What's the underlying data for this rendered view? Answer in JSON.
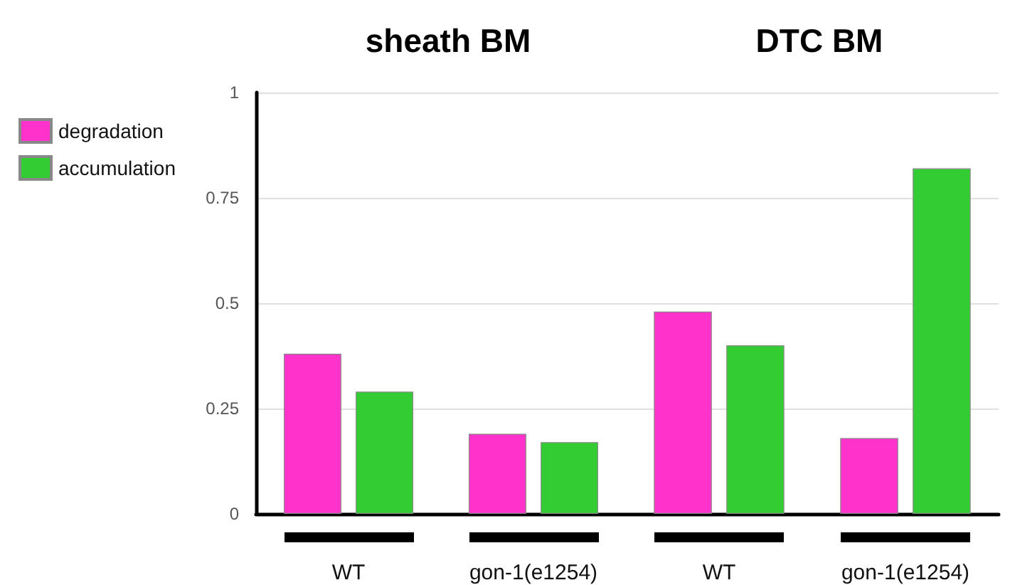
{
  "chart_data": [
    {
      "type": "bar",
      "title": "sheath BM",
      "categories": [
        "WT",
        "gon-1(e1254)"
      ],
      "series": [
        {
          "name": "degradation",
          "color": "#ff33cc",
          "values": [
            0.38,
            0.19
          ]
        },
        {
          "name": "accumulation",
          "color": "#33cc33",
          "values": [
            0.29,
            0.17
          ]
        }
      ],
      "ylim": [
        0,
        1
      ],
      "yticks": [
        0,
        0.25,
        0.5,
        0.75,
        1
      ],
      "grid": "y",
      "legend": "left"
    },
    {
      "type": "bar",
      "title": "DTC BM",
      "categories": [
        "WT",
        "gon-1(e1254)"
      ],
      "series": [
        {
          "color": "#ff33cc",
          "values": [
            0.48,
            0.18
          ]
        },
        {
          "color": "#33cc33",
          "values": [
            0.4,
            0.82
          ]
        }
      ],
      "ylim": [
        0,
        1
      ],
      "yticks": [
        0,
        0.25,
        0.5,
        0.75,
        1
      ],
      "grid": "y",
      "tick_labels": "x"
    }
  ]
}
